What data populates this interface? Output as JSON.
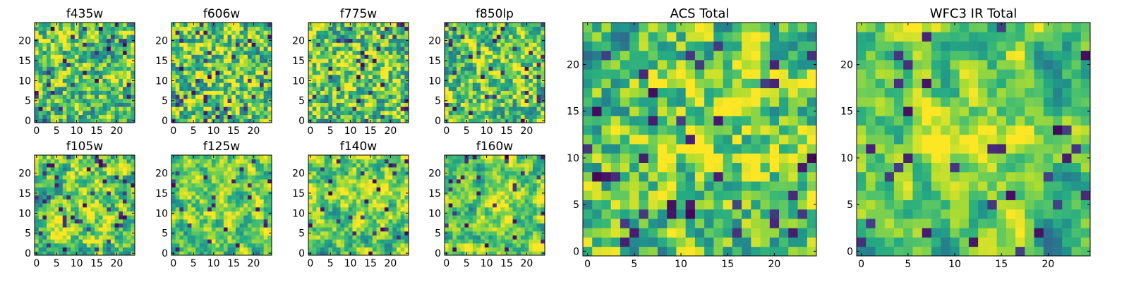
{
  "colormap": "viridis",
  "chart_data": [
    {
      "type": "heatmap",
      "title": "f435w",
      "grid_size": 25,
      "xticks": [
        0,
        5,
        10,
        15,
        20
      ],
      "yticks": [
        0,
        5,
        10,
        15,
        20
      ],
      "xlim": [
        -0.5,
        24.5
      ],
      "ylim": [
        -0.5,
        24.5
      ],
      "grid": false
    },
    {
      "type": "heatmap",
      "title": "f606w",
      "grid_size": 25,
      "xticks": [
        0,
        5,
        10,
        15,
        20
      ],
      "yticks": [
        0,
        5,
        10,
        15,
        20
      ],
      "xlim": [
        -0.5,
        24.5
      ],
      "ylim": [
        -0.5,
        24.5
      ],
      "grid": false
    },
    {
      "type": "heatmap",
      "title": "f775w",
      "grid_size": 25,
      "xticks": [
        0,
        5,
        10,
        15,
        20
      ],
      "yticks": [
        0,
        5,
        10,
        15,
        20
      ],
      "xlim": [
        -0.5,
        24.5
      ],
      "ylim": [
        -0.5,
        24.5
      ],
      "grid": false
    },
    {
      "type": "heatmap",
      "title": "f850lp",
      "grid_size": 25,
      "xticks": [
        0,
        5,
        10,
        15,
        20
      ],
      "yticks": [
        0,
        5,
        10,
        15,
        20
      ],
      "xlim": [
        -0.5,
        24.5
      ],
      "ylim": [
        -0.5,
        24.5
      ],
      "grid": false
    },
    {
      "type": "heatmap",
      "title": "f105w",
      "grid_size": 25,
      "xticks": [
        0,
        5,
        10,
        15,
        20
      ],
      "yticks": [
        0,
        5,
        10,
        15,
        20
      ],
      "xlim": [
        -0.5,
        24.5
      ],
      "ylim": [
        -0.5,
        24.5
      ],
      "grid": false
    },
    {
      "type": "heatmap",
      "title": "f125w",
      "grid_size": 25,
      "xticks": [
        0,
        5,
        10,
        15,
        20
      ],
      "yticks": [
        0,
        5,
        10,
        15,
        20
      ],
      "xlim": [
        -0.5,
        24.5
      ],
      "ylim": [
        -0.5,
        24.5
      ],
      "grid": false
    },
    {
      "type": "heatmap",
      "title": "f140w",
      "grid_size": 25,
      "xticks": [
        0,
        5,
        10,
        15,
        20
      ],
      "yticks": [
        0,
        5,
        10,
        15,
        20
      ],
      "xlim": [
        -0.5,
        24.5
      ],
      "ylim": [
        -0.5,
        24.5
      ],
      "grid": false
    },
    {
      "type": "heatmap",
      "title": "f160w",
      "grid_size": 25,
      "xticks": [
        0,
        5,
        10,
        15,
        20
      ],
      "yticks": [
        0,
        5,
        10,
        15,
        20
      ],
      "xlim": [
        -0.5,
        24.5
      ],
      "ylim": [
        -0.5,
        24.5
      ],
      "grid": false
    },
    {
      "type": "heatmap",
      "title": "ACS Total",
      "grid_size": 25,
      "xticks": [
        0,
        5,
        10,
        15,
        20
      ],
      "yticks": [
        0,
        5,
        10,
        15,
        20
      ],
      "xlim": [
        -0.5,
        24.5
      ],
      "ylim": [
        -0.5,
        24.5
      ],
      "grid": false
    },
    {
      "type": "heatmap",
      "title": "WFC3 IR Total",
      "grid_size": 25,
      "xticks": [
        0,
        5,
        10,
        15,
        20
      ],
      "yticks": [
        0,
        5,
        10,
        15,
        20
      ],
      "xlim": [
        -0.5,
        24.5
      ],
      "ylim": [
        -0.5,
        24.5
      ],
      "grid": false
    }
  ]
}
